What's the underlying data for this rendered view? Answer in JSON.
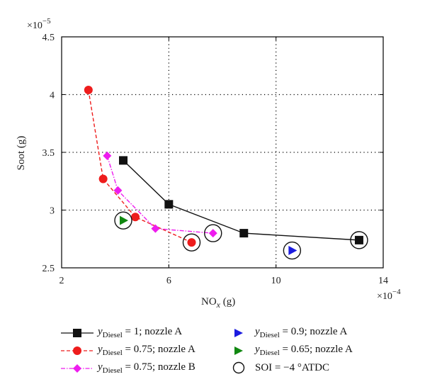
{
  "chart_data": {
    "type": "scatter",
    "xlabel": "NOx (g)",
    "ylabel": "Soot (g)",
    "x_exponent_label": "×10−4",
    "y_exponent_label": "×10−5",
    "xlim": [
      2,
      14
    ],
    "ylim": [
      2.5,
      4.5
    ],
    "x_ticks": [
      "2",
      "6",
      "10",
      "14"
    ],
    "y_ticks": [
      "2.5",
      "3",
      "3.5",
      "4",
      "4.5"
    ],
    "grid": true,
    "series": [
      {
        "name": "yDiesel = 1; nozzle A",
        "marker": "square",
        "color": "#111111",
        "line": "solid",
        "x": [
          4.3,
          6.0,
          8.8,
          13.1
        ],
        "y": [
          3.43,
          3.05,
          2.8,
          2.74
        ],
        "circled": [
          false,
          false,
          false,
          true
        ]
      },
      {
        "name": "yDiesel = 0.75; nozzle A",
        "marker": "circle",
        "color": "#ee1c1c",
        "line": "dashed",
        "x": [
          3.0,
          3.55,
          4.75,
          6.85
        ],
        "y": [
          4.04,
          3.27,
          2.94,
          2.72
        ],
        "circled": [
          false,
          false,
          false,
          true
        ]
      },
      {
        "name": "yDiesel = 0.75; nozzle B",
        "marker": "diamond",
        "color": "#ee1cee",
        "line": "dashdot",
        "x": [
          3.7,
          4.1,
          5.5,
          7.65
        ],
        "y": [
          3.47,
          3.17,
          2.84,
          2.8
        ],
        "circled": [
          false,
          false,
          false,
          true
        ]
      },
      {
        "name": "yDiesel = 0.9; nozzle A",
        "marker": "triangle-right",
        "color": "#1c1ce0",
        "line": "none",
        "x": [
          10.6
        ],
        "y": [
          2.65
        ],
        "circled": [
          true
        ]
      },
      {
        "name": "yDiesel = 0.65; nozzle A",
        "marker": "triangle-right",
        "color": "#118811",
        "line": "none",
        "x": [
          4.3
        ],
        "y": [
          2.91
        ],
        "circled": [
          true
        ]
      }
    ],
    "legend_extra": "SOI = −4 °ATDC",
    "legend_placement": "bottom"
  },
  "legend": [
    {
      "id": "s0",
      "pre": "y",
      "sub": "Diesel",
      "post": " = 1; nozzle A"
    },
    {
      "id": "s1",
      "pre": "y",
      "sub": "Diesel",
      "post": " = 0.75; nozzle A"
    },
    {
      "id": "s2",
      "pre": "y",
      "sub": "Diesel",
      "post": " = 0.75; nozzle B"
    },
    {
      "id": "s3",
      "pre": "y",
      "sub": "Diesel",
      "post": " = 0.9; nozzle A"
    },
    {
      "id": "s4",
      "pre": "y",
      "sub": "Diesel",
      "post": " = 0.65; nozzle A"
    },
    {
      "id": "soi",
      "text": "SOI = −4 °ATDC"
    }
  ],
  "axis_text": {
    "xlabel_main": "NO",
    "xlabel_sub": "x",
    "xlabel_unit": " (g)",
    "ylabel": "Soot (g)",
    "x_mult": "×10",
    "x_exp": "−4",
    "y_mult": "×10",
    "y_exp": "−5"
  }
}
